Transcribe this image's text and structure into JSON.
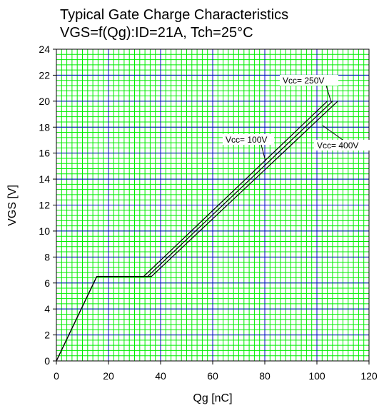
{
  "chart_data": {
    "type": "line",
    "title": "Typical Gate Charge Characteristics",
    "subtitle": "VGS=f(Qg):ID=21A, Tch=25°C",
    "xlabel": "Qg [nC]",
    "ylabel": "VGS [V]",
    "xlim": [
      0,
      120
    ],
    "ylim": [
      0,
      24
    ],
    "xticks": [
      0,
      20,
      40,
      60,
      80,
      100,
      120
    ],
    "yticks": [
      0,
      2,
      4,
      6,
      8,
      10,
      12,
      14,
      16,
      18,
      20,
      22,
      24
    ],
    "grid": true,
    "colors": {
      "grid_minor": "#00ee00",
      "grid_major": "#0000cc",
      "line": "#000000"
    },
    "series": [
      {
        "name": "Vcc= 100V",
        "x": [
          0,
          15.5,
          33.5,
          104
        ],
        "y": [
          0,
          6.5,
          6.5,
          20
        ]
      },
      {
        "name": "Vcc= 250V",
        "x": [
          0,
          15.5,
          35.0,
          106
        ],
        "y": [
          0,
          6.5,
          6.5,
          20
        ]
      },
      {
        "name": "Vcc= 400V",
        "x": [
          0,
          15.5,
          36.5,
          108
        ],
        "y": [
          0,
          6.5,
          6.5,
          20
        ]
      }
    ],
    "annotations": [
      {
        "text": "Vcc= 250V",
        "series": 1
      },
      {
        "text": "Vcc= 100V",
        "series": 0
      },
      {
        "text": "Vcc= 400V",
        "series": 2
      }
    ]
  }
}
